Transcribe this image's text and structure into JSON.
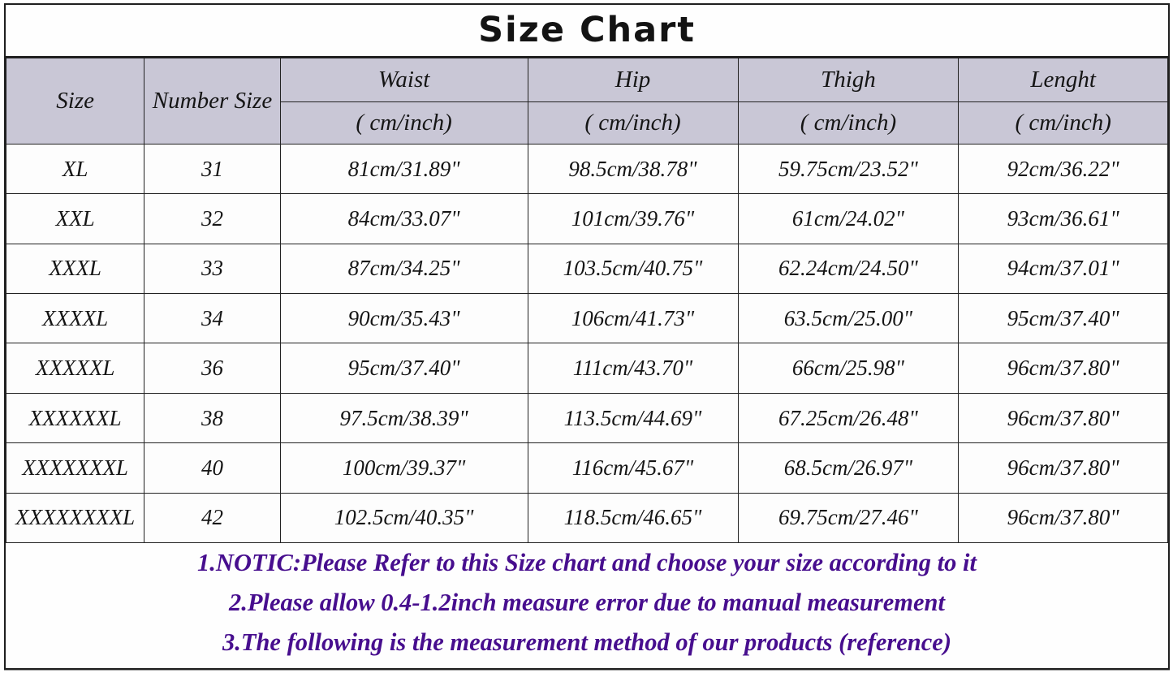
{
  "title": "Size Chart",
  "colors": {
    "header_bg": "#c9c7d6",
    "border": "#222222",
    "note_text": "#470e8e",
    "body_text": "#151515",
    "page_bg": "#ffffff"
  },
  "chart_data": {
    "type": "table",
    "title": "Size Chart",
    "columns": [
      {
        "label": "Size",
        "sub": ""
      },
      {
        "label": "Number Size",
        "sub": ""
      },
      {
        "label": "Waist",
        "sub": "( cm/inch)"
      },
      {
        "label": "Hip",
        "sub": "( cm/inch)"
      },
      {
        "label": "Thigh",
        "sub": "( cm/inch)"
      },
      {
        "label": "Lenght",
        "sub": "( cm/inch)"
      }
    ],
    "rows": [
      [
        "XL",
        "31",
        "81cm/31.89\"",
        "98.5cm/38.78\"",
        "59.75cm/23.52\"",
        "92cm/36.22\""
      ],
      [
        "XXL",
        "32",
        "84cm/33.07\"",
        "101cm/39.76\"",
        "61cm/24.02\"",
        "93cm/36.61\""
      ],
      [
        "XXXL",
        "33",
        "87cm/34.25\"",
        "103.5cm/40.75\"",
        "62.24cm/24.50\"",
        "94cm/37.01\""
      ],
      [
        "XXXXL",
        "34",
        "90cm/35.43\"",
        "106cm/41.73\"",
        "63.5cm/25.00\"",
        "95cm/37.40\""
      ],
      [
        "XXXXXL",
        "36",
        "95cm/37.40\"",
        "111cm/43.70\"",
        "66cm/25.98\"",
        "96cm/37.80\""
      ],
      [
        "XXXXXXL",
        "38",
        "97.5cm/38.39\"",
        "113.5cm/44.69\"",
        "67.25cm/26.48\"",
        "96cm/37.80\""
      ],
      [
        "XXXXXXXL",
        "40",
        "100cm/39.37\"",
        "116cm/45.67\"",
        "68.5cm/26.97\"",
        "96cm/37.80\""
      ],
      [
        "XXXXXXXXL",
        "42",
        "102.5cm/40.35\"",
        "118.5cm/46.65\"",
        "69.75cm/27.46\"",
        "96cm/37.80\""
      ]
    ],
    "notes": [
      "1.NOTIC:Please Refer to this Size chart and choose your size according to it",
      "2.Please allow 0.4-1.2inch measure error due to manual measurement",
      "3.The following is the measurement method of our products (reference)"
    ]
  }
}
